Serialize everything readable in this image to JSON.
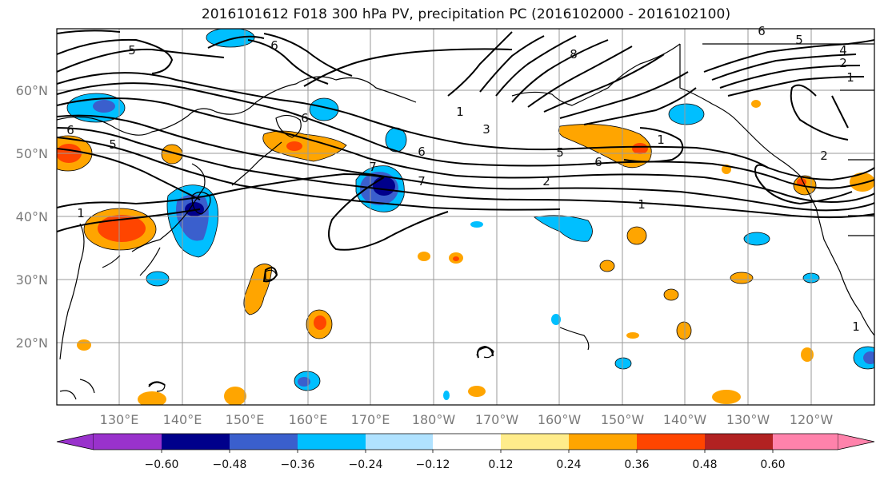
{
  "title": "2016101612 F018 300 hPa PV, precipitation PC (2016102000 - 2016102100)",
  "map": {
    "lat_labels": [
      "60°N",
      "50°N",
      "40°N",
      "30°N",
      "20°N"
    ],
    "lon_labels": [
      "130°E",
      "140°E",
      "150°E",
      "160°E",
      "170°E",
      "180°W",
      "170°W",
      "160°W",
      "150°W",
      "140°W",
      "130°W",
      "120°W"
    ],
    "contour_labels": [
      "5",
      "6",
      "6",
      "5",
      "4",
      "2",
      "1",
      "1",
      "3",
      "6",
      "7",
      "5",
      "6",
      "1",
      "2",
      "1",
      "1",
      "2",
      "6",
      "5",
      "6",
      "7",
      "8",
      "1"
    ]
  },
  "colorbar": {
    "ticks": [
      "−0.60",
      "−0.48",
      "−0.36",
      "−0.24",
      "−0.12",
      "0.12",
      "0.24",
      "0.36",
      "0.48",
      "0.60"
    ],
    "colors": [
      "#9932CC",
      "#00008B",
      "#3A5FCD",
      "#00BFFF",
      "#B0E2FF",
      "#FFFFFF",
      "#FFEC8B",
      "#FFA500",
      "#FF4500",
      "#B22222",
      "#FF82AB"
    ]
  }
}
